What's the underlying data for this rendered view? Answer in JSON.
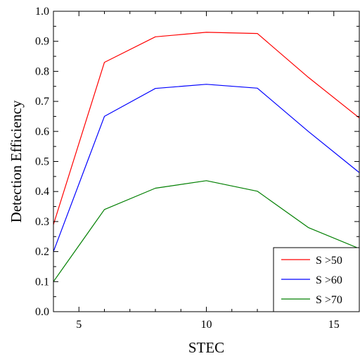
{
  "chart_data": {
    "type": "line",
    "xlabel": "STEC",
    "ylabel": "Detection Efficiency",
    "xlim": [
      4,
      16
    ],
    "ylim": [
      0,
      1
    ],
    "xticks": [
      5,
      10,
      15
    ],
    "xtick_labels": [
      "5",
      "10",
      "15"
    ],
    "yticks": [
      0,
      0.1,
      0.2,
      0.3,
      0.4,
      0.5,
      0.6,
      0.7,
      0.8,
      0.9,
      1.0
    ],
    "ytick_labels": [
      "0.0",
      "0.1",
      "0.2",
      "0.3",
      "0.4",
      "0.5",
      "0.6",
      "0.7",
      "0.8",
      "0.9",
      "1.0"
    ],
    "x": [
      4,
      6,
      8,
      10,
      12,
      14,
      16
    ],
    "series": [
      {
        "name": "S >50",
        "color": "#ff0000",
        "values": [
          0.29,
          0.83,
          0.915,
          0.93,
          0.926,
          0.78,
          0.645
        ]
      },
      {
        "name": "S >60",
        "color": "#0000ff",
        "values": [
          0.2,
          0.65,
          0.743,
          0.757,
          0.744,
          0.6,
          0.463
        ]
      },
      {
        "name": "S >70",
        "color": "#007f00",
        "values": [
          0.1,
          0.34,
          0.411,
          0.436,
          0.401,
          0.28,
          0.21
        ]
      }
    ],
    "grid": false,
    "legend_position": "bottom-right"
  }
}
